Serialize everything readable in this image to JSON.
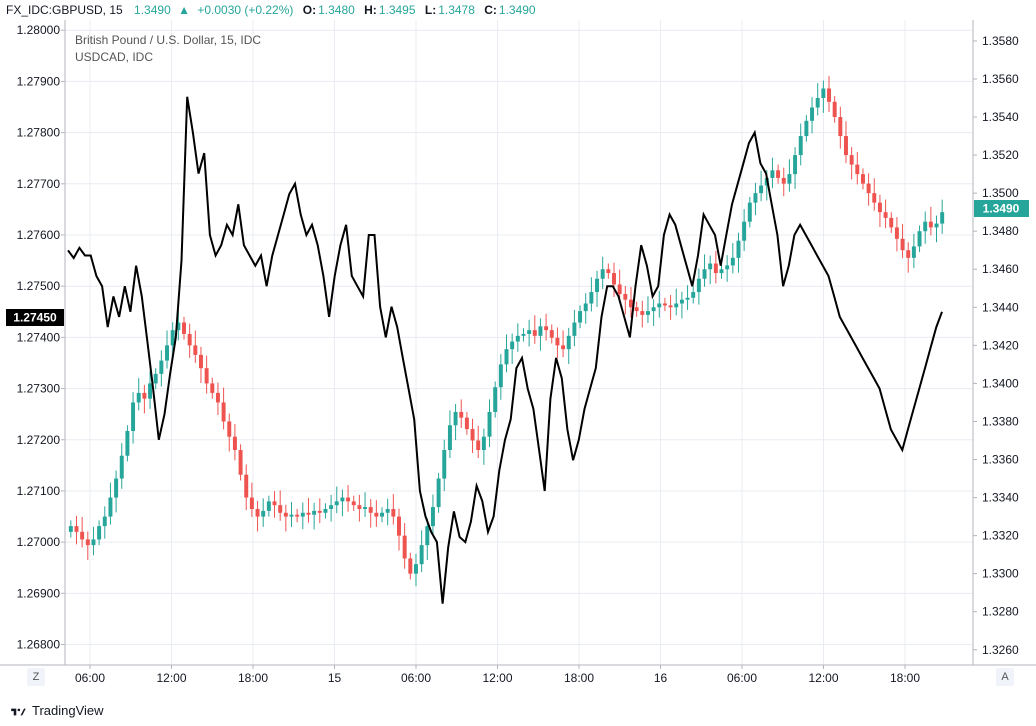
{
  "header": {
    "symbol": "FX_IDC:GBPUSD, 15",
    "last": "1.3490",
    "change": "+0.0030 (+0.22%)",
    "o_label": "O:",
    "o_value": "1.3480",
    "h_label": "H:",
    "h_value": "1.3495",
    "l_label": "L:",
    "l_value": "1.3478",
    "c_label": "C:",
    "c_value": "1.3490"
  },
  "legend": {
    "line1": "British Pound / U.S. Dollar, 15, IDC",
    "line2": "USDCAD, IDC"
  },
  "footer": {
    "brand": "TradingView",
    "left_scale_btn": "Z",
    "right_scale_btn": "A"
  },
  "colors": {
    "up": "#26a69a",
    "down": "#ef5350",
    "line": "#000000",
    "grid": "#e9ecf2",
    "last_badge": "#26a69a",
    "left_badge": "#000000"
  },
  "chart_data": {
    "type": "candlestick+line",
    "x_ticks": [
      "06:00",
      "12:00",
      "18:00",
      "15",
      "06:00",
      "12:00",
      "18:00",
      "16",
      "06:00",
      "12:00",
      "18:00"
    ],
    "left_axis": {
      "series": "USDCAD",
      "range": [
        1.2676,
        1.2802
      ],
      "ticks": [
        "1.28000",
        "1.27900",
        "1.27800",
        "1.27700",
        "1.27600",
        "1.27500",
        "1.27400",
        "1.27300",
        "1.27200",
        "1.27100",
        "1.27000",
        "1.26900",
        "1.26800"
      ],
      "current_label": "1.27450"
    },
    "right_axis": {
      "series": "GBPUSD",
      "range": [
        1.3252,
        1.3591
      ],
      "ticks": [
        "1.3580",
        "1.3560",
        "1.3540",
        "1.3520",
        "1.3500",
        "1.3480",
        "1.3460",
        "1.3440",
        "1.3420",
        "1.3400",
        "1.3380",
        "1.3360",
        "1.3340",
        "1.3320",
        "1.3300",
        "1.3280",
        "1.3260"
      ],
      "current_label": "1.3490"
    },
    "gbpusd_close": [
      1.3325,
      1.3322,
      1.3318,
      1.3315,
      1.3318,
      1.3325,
      1.333,
      1.334,
      1.335,
      1.3362,
      1.3375,
      1.339,
      1.3395,
      1.3392,
      1.34,
      1.3405,
      1.3412,
      1.342,
      1.3428,
      1.3432,
      1.3426,
      1.342,
      1.3415,
      1.3408,
      1.34,
      1.3395,
      1.339,
      1.338,
      1.3372,
      1.3365,
      1.3352,
      1.334,
      1.3334,
      1.333,
      1.3333,
      1.3338,
      1.3336,
      1.3332,
      1.333,
      1.3331,
      1.333,
      1.3332,
      1.3331,
      1.3333,
      1.3332,
      1.3334,
      1.3336,
      1.3338,
      1.334,
      1.3338,
      1.3336,
      1.3334,
      1.3335,
      1.3332,
      1.333,
      1.3332,
      1.3334,
      1.333,
      1.332,
      1.3308,
      1.33,
      1.3305,
      1.3315,
      1.3325,
      1.3335,
      1.335,
      1.3365,
      1.3378,
      1.3385,
      1.3382,
      1.3376,
      1.337,
      1.3365,
      1.3372,
      1.3385,
      1.3398,
      1.341,
      1.3418,
      1.3422,
      1.3425,
      1.3426,
      1.3428,
      1.3425,
      1.343,
      1.3428,
      1.3424,
      1.342,
      1.3418,
      1.3425,
      1.3432,
      1.3438,
      1.3442,
      1.3448,
      1.3455,
      1.346,
      1.3458,
      1.3452,
      1.3447,
      1.3444,
      1.344,
      1.3438,
      1.3436,
      1.3438,
      1.344,
      1.3442,
      1.3441,
      1.344,
      1.3442,
      1.3444,
      1.3445,
      1.3448,
      1.3455,
      1.346,
      1.3463,
      1.3458,
      1.346,
      1.3462,
      1.3466,
      1.3475,
      1.3485,
      1.3495,
      1.35,
      1.3504,
      1.3508,
      1.3512,
      1.3508,
      1.3505,
      1.351,
      1.352,
      1.353,
      1.3538,
      1.3545,
      1.355,
      1.3555,
      1.3548,
      1.354,
      1.353,
      1.352,
      1.3515,
      1.351,
      1.3505,
      1.35,
      1.3495,
      1.349,
      1.3487,
      1.3482,
      1.3476,
      1.347,
      1.3466,
      1.3472,
      1.348,
      1.3485,
      1.3482,
      1.3484,
      1.349
    ],
    "usdcad_close": [
      1.2757,
      1.27555,
      1.27575,
      1.2756,
      1.2756,
      1.2752,
      1.275,
      1.2742,
      1.2748,
      1.2744,
      1.275,
      1.2745,
      1.2754,
      1.2748,
      1.2739,
      1.273,
      1.272,
      1.2725,
      1.2733,
      1.274,
      1.2755,
      1.2787,
      1.278,
      1.2772,
      1.2776,
      1.276,
      1.2756,
      1.2758,
      1.2762,
      1.276,
      1.2766,
      1.2758,
      1.2756,
      1.2754,
      1.2756,
      1.275,
      1.2756,
      1.276,
      1.2764,
      1.2768,
      1.277,
      1.2764,
      1.276,
      1.2762,
      1.2758,
      1.2752,
      1.2744,
      1.2752,
      1.2758,
      1.2762,
      1.2752,
      1.275,
      1.2748,
      1.276,
      1.276,
      1.2746,
      1.274,
      1.2746,
      1.2742,
      1.2736,
      1.273,
      1.2724,
      1.271,
      1.2705,
      1.2702,
      1.27,
      1.2688,
      1.2699,
      1.2706,
      1.2701,
      1.27,
      1.2704,
      1.2711,
      1.2708,
      1.2702,
      1.2705,
      1.2714,
      1.272,
      1.2724,
      1.2734,
      1.2736,
      1.273,
      1.2726,
      1.2718,
      1.271,
      1.2728,
      1.2736,
      1.2732,
      1.2722,
      1.2716,
      1.272,
      1.2726,
      1.273,
      1.2734,
      1.2744,
      1.275,
      1.275,
      1.2748,
      1.2744,
      1.274,
      1.275,
      1.2758,
      1.2754,
      1.2748,
      1.275,
      1.276,
      1.2764,
      1.2762,
      1.2758,
      1.2754,
      1.275,
      1.2756,
      1.2764,
      1.2762,
      1.276,
      1.2754,
      1.276,
      1.2766,
      1.277,
      1.2774,
      1.2778,
      1.278,
      1.2774,
      1.2772,
      1.2766,
      1.276,
      1.275,
      1.2754,
      1.276,
      1.2762,
      1.276,
      1.2758,
      1.2756,
      1.2754,
      1.2752,
      1.2748,
      1.2744,
      1.2742,
      1.274,
      1.2738,
      1.2736,
      1.2734,
      1.2732,
      1.273,
      1.2726,
      1.2722,
      1.272,
      1.2718,
      1.2722,
      1.2726,
      1.273,
      1.2734,
      1.2738,
      1.2742,
      1.2745
    ]
  }
}
